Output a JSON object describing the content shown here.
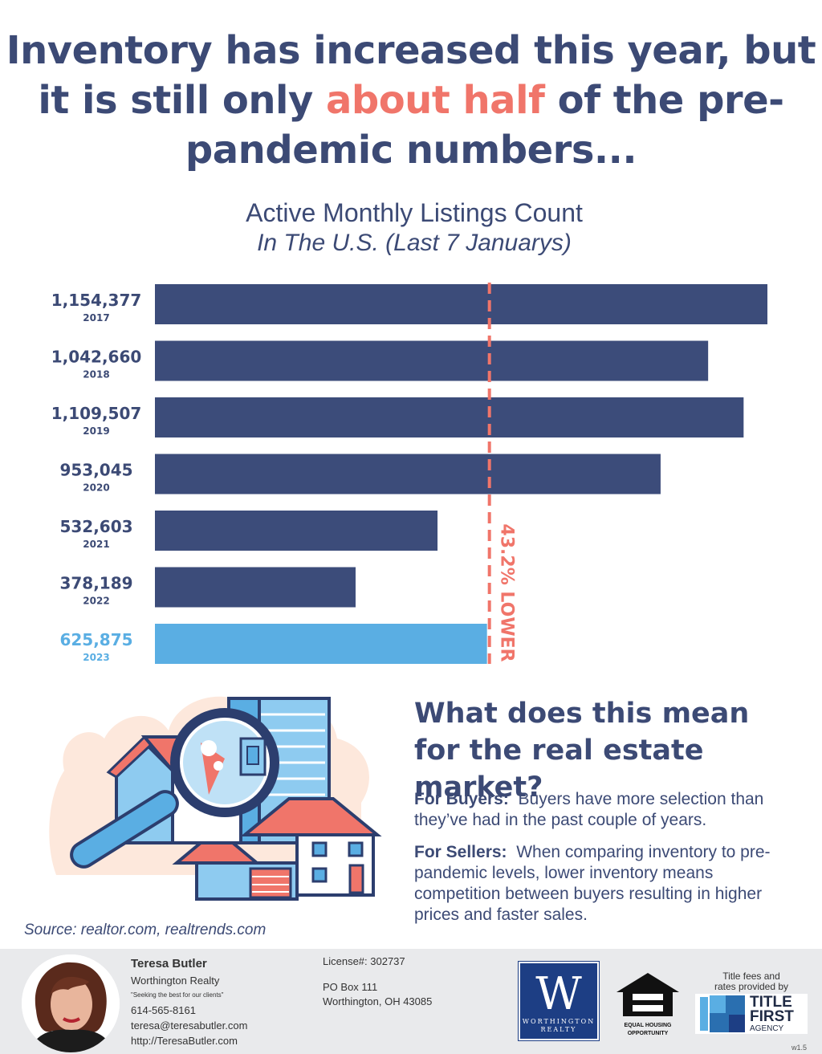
{
  "headline": {
    "part1": "Inventory has increased this year, but it is still only ",
    "highlight": "about half",
    "part2": " of the pre-pandemic numbers..."
  },
  "chart_data": {
    "type": "bar",
    "orientation": "horizontal",
    "title": "Active Monthly Listings Count",
    "subtitle": "In The U.S. (Last 7 Januarys)",
    "categories": [
      "2017",
      "2018",
      "2019",
      "2020",
      "2021",
      "2022",
      "2023"
    ],
    "values": [
      1154377,
      1042660,
      1109507,
      953045,
      532603,
      378189,
      625875
    ],
    "value_labels": [
      "1,154,377",
      "1,042,660",
      "1,109,507",
      "953,045",
      "532,603",
      "378,189",
      "625,875"
    ],
    "highlight_index": 6,
    "colors": {
      "bar": "#3c4c7a",
      "highlight": "#5aaee3",
      "reference_line": "#f0756a",
      "label": "#3c4a75"
    },
    "reference_value": 625875,
    "reference_label": "43.2% LOWER",
    "xlim": [
      0,
      1154377
    ],
    "grid": false,
    "legend": "none"
  },
  "section": {
    "question": "What does this mean for the real estate market?",
    "buyers_label": "For Buyers:",
    "buyers_text": "Buyers have more selection than they’ve had in the past couple of years.",
    "sellers_label": "For Sellers:",
    "sellers_text": "When comparing inventory to pre-pandemic levels, lower inventory means competition between buyers resulting in higher prices and faster sales."
  },
  "source": "Source: realtor.com, realtrends.com",
  "footer": {
    "name": "Teresa Butler",
    "company": "Worthington Realty",
    "tagline": "\"Seeking the best for our clients\"",
    "phone": "614-565-8161",
    "email": "teresa@teresabutler.com",
    "website": "http://TeresaButler.com",
    "license": "License#: 302737",
    "address1": "PO Box 111",
    "address2": "Worthington, OH 43085",
    "logo_letter": "W",
    "logo_name1": "WORTHINGTON",
    "logo_name2": "REALTY",
    "eho_line1": "EQUAL HOUSING",
    "eho_line2": "OPPORTUNITY",
    "title_caption1": "Title fees and",
    "title_caption2": "rates provided by",
    "title_logo1": "TITLE",
    "title_logo2": "FIRST",
    "title_logo3": "AGENCY",
    "version": "w1.5"
  }
}
